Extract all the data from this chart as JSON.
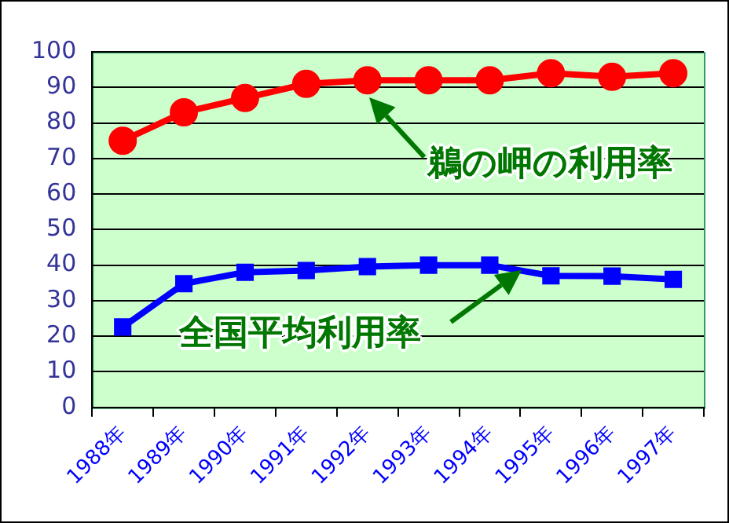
{
  "chart_data": {
    "type": "line",
    "categories": [
      "1988年",
      "1989年",
      "1990年",
      "1991年",
      "1992年",
      "1993年",
      "1994年",
      "1995年",
      "1996年",
      "1997年"
    ],
    "series": [
      {
        "color": "#ff0000",
        "values": [
          75,
          83,
          87,
          91,
          92,
          92,
          92,
          94,
          93,
          94
        ],
        "marker": "circle"
      },
      {
        "color": "#0000ff",
        "values": [
          22.6,
          34.8,
          38,
          38.5,
          39.6,
          40,
          40,
          37,
          36.9,
          36
        ],
        "marker": "square"
      }
    ],
    "ylim": [
      0,
      100
    ],
    "yticks": [
      0,
      10,
      20,
      30,
      40,
      50,
      60,
      70,
      80,
      90,
      100
    ],
    "grid": "y",
    "legend": false,
    "annotations": [
      "鵜の岬の利用率",
      "全国平均利用率"
    ]
  }
}
